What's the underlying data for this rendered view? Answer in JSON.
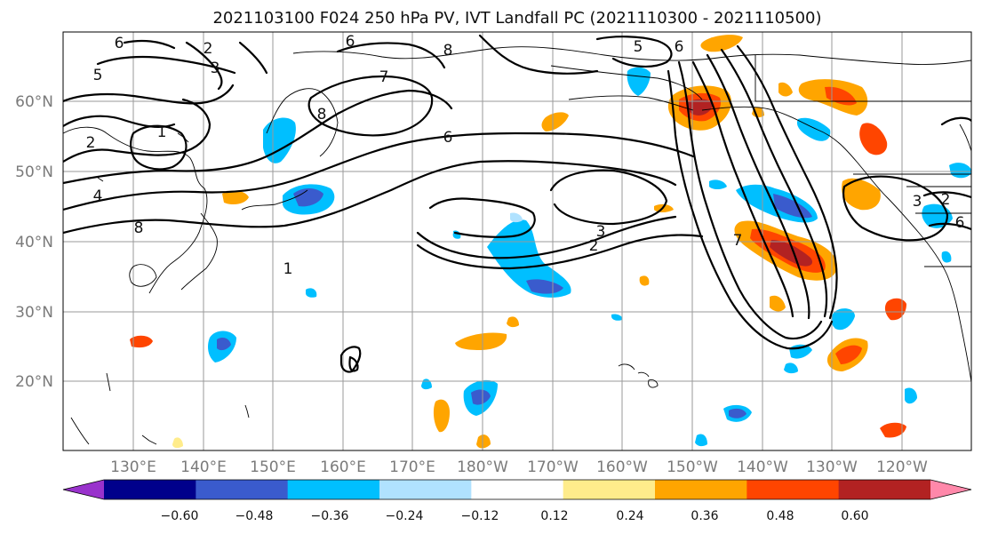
{
  "title": "2021103100 F024 250 hPa PV, IVT Landfall PC (2021110300 - 2021110500)",
  "lat_labels": [
    "60°N",
    "50°N",
    "40°N",
    "30°N",
    "20°N"
  ],
  "lon_labels": [
    "130°E",
    "140°E",
    "150°E",
    "160°E",
    "170°E",
    "180°W",
    "170°W",
    "160°W",
    "150°W",
    "140°W",
    "130°W",
    "120°W"
  ],
  "colorbar": {
    "colors": [
      "#9932cc",
      "#00008b",
      "#3a5bcd",
      "#00bfff",
      "#b0e2ff",
      "#ffffff",
      "#ffec8b",
      "#ffa500",
      "#ff4500",
      "#b22222",
      "#ff88aa"
    ],
    "tick_labels": [
      "−0.60",
      "−0.48",
      "−0.36",
      "−0.24",
      "−0.12",
      "0.12",
      "0.24",
      "0.36",
      "0.48",
      "0.60"
    ]
  },
  "contour_labels": [
    "6",
    "2",
    "3",
    "5",
    "7",
    "8",
    "6",
    "5",
    "6",
    "8",
    "1",
    "2",
    "4",
    "8",
    "6",
    "1",
    "3",
    "2",
    "7",
    "3",
    "2",
    "6"
  ],
  "colors": {
    "contour": "#000000",
    "grid": "#9a9a9a",
    "axis_text": "#7a7a7a"
  }
}
